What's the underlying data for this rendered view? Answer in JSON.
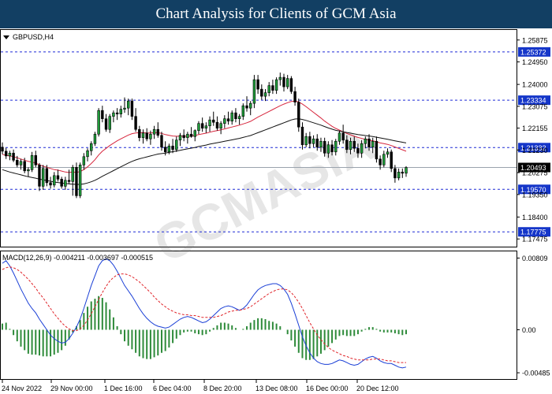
{
  "banner": {
    "title": "Chart Analysis for Clients of GCM Asia"
  },
  "watermark": "GCMASIA",
  "chart_data": {
    "type": "candlestick",
    "symbol": "GBPUSD,H4",
    "price_ticks": [
      "1.25875",
      "1.24950",
      "1.24000",
      "1.23075",
      "1.22155",
      "1.21230",
      "1.20275",
      "1.19350",
      "1.18400",
      "1.17475"
    ],
    "price_range": [
      1.1725,
      1.261
    ],
    "levels": [
      {
        "label": "1.25372",
        "value": 1.25372
      },
      {
        "label": "1.23334",
        "value": 1.23334
      },
      {
        "label": "1.21332",
        "value": 1.21332
      },
      {
        "label": "1.19570",
        "value": 1.1957
      },
      {
        "label": "1.17775",
        "value": 1.17775
      }
    ],
    "current_price": {
      "label": "1.20493",
      "value": 1.20493
    },
    "x_labels": [
      "24 Nov 2022",
      "29 Nov 00:00",
      "1 Dec 16:00",
      "6 Dec 04:00",
      "8 Dec 20:00",
      "13 Dec 08:00",
      "16 Dec 00:00",
      "20 Dec 12:00"
    ],
    "candles": [
      [
        1.2135,
        1.2155,
        1.2105,
        1.2118
      ],
      [
        1.2118,
        1.2132,
        1.2085,
        1.2098
      ],
      [
        1.2098,
        1.212,
        1.208,
        1.211
      ],
      [
        1.211,
        1.2125,
        1.2072,
        1.208
      ],
      [
        1.208,
        1.2098,
        1.205,
        1.206
      ],
      [
        1.206,
        1.2085,
        1.204,
        1.2075
      ],
      [
        1.2075,
        1.209,
        1.2025,
        1.2035
      ],
      [
        1.2035,
        1.205,
        1.201,
        1.204
      ],
      [
        1.204,
        1.2115,
        1.203,
        1.21
      ],
      [
        1.21,
        1.212,
        1.205,
        1.206
      ],
      [
        1.206,
        1.2068,
        1.195,
        1.197
      ],
      [
        1.197,
        1.206,
        1.1955,
        1.2045
      ],
      [
        1.2045,
        1.206,
        1.197,
        1.1985
      ],
      [
        1.1985,
        1.201,
        1.196,
        1.1975
      ],
      [
        1.1975,
        1.203,
        1.1965,
        1.2015
      ],
      [
        1.2015,
        1.204,
        1.199,
        1.2
      ],
      [
        1.2,
        1.201,
        1.196,
        1.197
      ],
      [
        1.197,
        1.201,
        1.1955,
        1.1995
      ],
      [
        1.1995,
        1.204,
        1.198,
        1.199
      ],
      [
        1.199,
        1.206,
        1.193,
        1.205
      ],
      [
        1.205,
        1.207,
        1.192,
        1.193
      ],
      [
        1.193,
        1.207,
        1.192,
        1.206
      ],
      [
        1.206,
        1.211,
        1.204,
        1.2095
      ],
      [
        1.2095,
        1.213,
        1.2075,
        1.212
      ],
      [
        1.212,
        1.216,
        1.21,
        1.215
      ],
      [
        1.215,
        1.22,
        1.214,
        1.219
      ],
      [
        1.219,
        1.23,
        1.218,
        1.229
      ],
      [
        1.229,
        1.231,
        1.224,
        1.2255
      ],
      [
        1.2255,
        1.2275,
        1.22,
        1.221
      ],
      [
        1.221,
        1.2275,
        1.2195,
        1.2265
      ],
      [
        1.2265,
        1.229,
        1.224,
        1.228
      ],
      [
        1.228,
        1.23,
        1.225,
        1.2275
      ],
      [
        1.2275,
        1.231,
        1.226,
        1.2295
      ],
      [
        1.2295,
        1.2345,
        1.228,
        1.23
      ],
      [
        1.23,
        1.234,
        1.227,
        1.233
      ],
      [
        1.233,
        1.234,
        1.225,
        1.2265
      ],
      [
        1.2265,
        1.23,
        1.22,
        1.221
      ],
      [
        1.221,
        1.2225,
        1.216,
        1.2175
      ],
      [
        1.2175,
        1.221,
        1.215,
        1.2195
      ],
      [
        1.2195,
        1.2215,
        1.216,
        1.217
      ],
      [
        1.217,
        1.2205,
        1.2145,
        1.219
      ],
      [
        1.219,
        1.2225,
        1.217,
        1.221
      ],
      [
        1.221,
        1.224,
        1.2175,
        1.2185
      ],
      [
        1.2185,
        1.22,
        1.212,
        1.2135
      ],
      [
        1.2135,
        1.216,
        1.21,
        1.2115
      ],
      [
        1.2115,
        1.215,
        1.2105,
        1.214
      ],
      [
        1.214,
        1.217,
        1.211,
        1.2125
      ],
      [
        1.2125,
        1.218,
        1.2115,
        1.2165
      ],
      [
        1.2165,
        1.2195,
        1.214,
        1.2185
      ],
      [
        1.2185,
        1.221,
        1.216,
        1.2175
      ],
      [
        1.2175,
        1.22,
        1.215,
        1.219
      ],
      [
        1.219,
        1.222,
        1.2175,
        1.218
      ],
      [
        1.218,
        1.221,
        1.216,
        1.2205
      ],
      [
        1.2205,
        1.2245,
        1.219,
        1.2235
      ],
      [
        1.2235,
        1.226,
        1.22,
        1.2215
      ],
      [
        1.2215,
        1.224,
        1.2195,
        1.2225
      ],
      [
        1.2225,
        1.2265,
        1.22,
        1.225
      ],
      [
        1.225,
        1.2285,
        1.2225,
        1.224
      ],
      [
        1.224,
        1.2265,
        1.2205,
        1.2215
      ],
      [
        1.2215,
        1.2245,
        1.219,
        1.2235
      ],
      [
        1.2235,
        1.227,
        1.2215,
        1.2255
      ],
      [
        1.2255,
        1.2285,
        1.223,
        1.2245
      ],
      [
        1.2245,
        1.229,
        1.223,
        1.228
      ],
      [
        1.228,
        1.23,
        1.224,
        1.2255
      ],
      [
        1.2255,
        1.2275,
        1.223,
        1.2265
      ],
      [
        1.2265,
        1.232,
        1.225,
        1.231
      ],
      [
        1.231,
        1.235,
        1.2285,
        1.23
      ],
      [
        1.23,
        1.233,
        1.227,
        1.232
      ],
      [
        1.232,
        1.244,
        1.23,
        1.242
      ],
      [
        1.242,
        1.244,
        1.236,
        1.238
      ],
      [
        1.238,
        1.24,
        1.2335,
        1.235
      ],
      [
        1.235,
        1.238,
        1.233,
        1.2365
      ],
      [
        1.2365,
        1.241,
        1.235,
        1.2395
      ],
      [
        1.2395,
        1.242,
        1.236,
        1.2375
      ],
      [
        1.2375,
        1.243,
        1.236,
        1.242
      ],
      [
        1.242,
        1.245,
        1.2395,
        1.243
      ],
      [
        1.243,
        1.2445,
        1.237,
        1.239
      ],
      [
        1.239,
        1.244,
        1.238,
        1.2425
      ],
      [
        1.2425,
        1.2435,
        1.236,
        1.237
      ],
      [
        1.237,
        1.239,
        1.231,
        1.2325
      ],
      [
        1.2325,
        1.234,
        1.22,
        1.222
      ],
      [
        1.222,
        1.224,
        1.2125,
        1.2145
      ],
      [
        1.2145,
        1.2195,
        1.2135,
        1.218
      ],
      [
        1.218,
        1.22,
        1.213,
        1.215
      ],
      [
        1.215,
        1.2185,
        1.2135,
        1.217
      ],
      [
        1.217,
        1.219,
        1.212,
        1.2135
      ],
      [
        1.2135,
        1.2175,
        1.2115,
        1.216
      ],
      [
        1.216,
        1.2175,
        1.2095,
        1.211
      ],
      [
        1.211,
        1.216,
        1.209,
        1.2145
      ],
      [
        1.2145,
        1.2165,
        1.21,
        1.2115
      ],
      [
        1.2115,
        1.217,
        1.21,
        1.216
      ],
      [
        1.216,
        1.2205,
        1.2145,
        1.2195
      ],
      [
        1.2195,
        1.223,
        1.215,
        1.2165
      ],
      [
        1.2165,
        1.2185,
        1.211,
        1.2125
      ],
      [
        1.2125,
        1.2175,
        1.2105,
        1.216
      ],
      [
        1.216,
        1.218,
        1.2115,
        1.213
      ],
      [
        1.213,
        1.215,
        1.209,
        1.211
      ],
      [
        1.211,
        1.2165,
        1.209,
        1.215
      ],
      [
        1.215,
        1.218,
        1.213,
        1.217
      ],
      [
        1.217,
        1.219,
        1.212,
        1.2135
      ],
      [
        1.2135,
        1.2175,
        1.211,
        1.216
      ],
      [
        1.216,
        1.218,
        1.207,
        1.2085
      ],
      [
        1.2085,
        1.21,
        1.204,
        1.206
      ],
      [
        1.206,
        1.212,
        1.205,
        1.2105
      ],
      [
        1.2105,
        1.213,
        1.209,
        1.2115
      ],
      [
        1.2115,
        1.2125,
        1.203,
        1.2045
      ],
      [
        1.2045,
        1.206,
        1.1985,
        1.2005
      ],
      [
        1.2005,
        1.2045,
        1.1995,
        1.203
      ],
      [
        1.203,
        1.2045,
        1.2005,
        1.2025
      ],
      [
        1.2025,
        1.2055,
        1.201,
        1.2049
      ]
    ],
    "ma_red": [
      1.2105,
      1.21,
      1.2098,
      1.2095,
      1.209,
      1.2085,
      1.208,
      1.2075,
      1.2072,
      1.2068,
      1.206,
      1.2055,
      1.205,
      1.2045,
      1.204,
      1.2038,
      1.2034,
      1.203,
      1.2028,
      1.203,
      1.2028,
      1.2032,
      1.204,
      1.2052,
      1.2066,
      1.2082,
      1.2102,
      1.2118,
      1.213,
      1.2142,
      1.2152,
      1.2162,
      1.217,
      1.2178,
      1.2186,
      1.2192,
      1.2195,
      1.2196,
      1.2196,
      1.2195,
      1.2195,
      1.2196,
      1.2196,
      1.2193,
      1.2188,
      1.2185,
      1.2182,
      1.2181,
      1.2181,
      1.2181,
      1.2181,
      1.2182,
      1.2184,
      1.2188,
      1.2191,
      1.2194,
      1.2198,
      1.2202,
      1.2205,
      1.2208,
      1.2212,
      1.2216,
      1.222,
      1.2224,
      1.2228,
      1.2233,
      1.2238,
      1.2244,
      1.2253,
      1.2262,
      1.227,
      1.2278,
      1.2286,
      1.2294,
      1.2302,
      1.231,
      1.2317,
      1.2323,
      1.2328,
      1.233,
      1.2326,
      1.2317,
      1.2306,
      1.2294,
      1.2282,
      1.227,
      1.2258,
      1.2245,
      1.2234,
      1.2223,
      1.2214,
      1.2207,
      1.22,
      1.2193,
      1.2187,
      1.2181,
      1.2176,
      1.2172,
      1.2168,
      1.2165,
      1.2162,
      1.2158,
      1.2153,
      1.215,
      1.2147,
      1.2142,
      1.2136,
      1.213,
      1.2124,
      1.2118
    ],
    "ma_black": [
      1.204,
      1.2035,
      1.203,
      1.2026,
      1.2022,
      1.2018,
      1.2014,
      1.201,
      1.2007,
      1.2004,
      1.2,
      1.1997,
      1.1994,
      1.1991,
      1.1988,
      1.1986,
      1.1984,
      1.1982,
      1.198,
      1.1979,
      1.1978,
      1.1978,
      1.198,
      1.1984,
      1.1989,
      1.1995,
      1.2003,
      1.2012,
      1.202,
      1.2028,
      1.2036,
      1.2044,
      1.2052,
      1.206,
      1.2068,
      1.2075,
      1.2081,
      1.2086,
      1.209,
      1.2094,
      1.2098,
      1.2102,
      1.2106,
      1.2108,
      1.211,
      1.2113,
      1.2116,
      1.2119,
      1.2122,
      1.2125,
      1.2128,
      1.2131,
      1.2134,
      1.2138,
      1.2141,
      1.2144,
      1.2148,
      1.2151,
      1.2154,
      1.2157,
      1.216,
      1.2163,
      1.2166,
      1.2169,
      1.2172,
      1.2176,
      1.218,
      1.2184,
      1.219,
      1.2196,
      1.2202,
      1.2208,
      1.2214,
      1.222,
      1.2226,
      1.2232,
      1.2238,
      1.2244,
      1.225,
      1.2254,
      1.2255,
      1.2252,
      1.2248,
      1.2243,
      1.2238,
      1.2233,
      1.2228,
      1.2222,
      1.2216,
      1.2211,
      1.2206,
      1.2203,
      1.22,
      1.2197,
      1.2194,
      1.2191,
      1.2188,
      1.2186,
      1.2184,
      1.2182,
      1.218,
      1.2177,
      1.2174,
      1.2171,
      1.2168,
      1.2165,
      1.2162,
      1.2159,
      1.2156,
      1.2153
    ],
    "ma_red_start": 0,
    "ma_black_start": 0,
    "macd": {
      "label": "MACD(12,26,9) -0.004211 -0.003697 -0.000515",
      "ticks": [
        "0.00809",
        "0.00",
        "-0.00485"
      ],
      "range": [
        -0.0052,
        0.0084
      ],
      "line": [
        0.0075,
        0.0078,
        0.0072,
        0.0064,
        0.0055,
        0.0046,
        0.0038,
        0.003,
        0.0024,
        0.0019,
        0.0012,
        0.0006,
        0.0,
        -0.0006,
        -0.001,
        -0.0013,
        -0.0015,
        -0.0014,
        -0.001,
        -0.0004,
        0.0003,
        0.0012,
        0.0024,
        0.0037,
        0.005,
        0.0061,
        0.0072,
        0.0078,
        0.008,
        0.0078,
        0.0073,
        0.0066,
        0.0058,
        0.005,
        0.0044,
        0.0038,
        0.0031,
        0.0024,
        0.0018,
        0.0013,
        0.0009,
        0.0006,
        0.0004,
        0.0003,
        0.0002,
        0.0003,
        0.0006,
        0.0009,
        0.0012,
        0.0014,
        0.0015,
        0.0014,
        0.0012,
        0.001,
        0.0008,
        0.0009,
        0.0012,
        0.0016,
        0.002,
        0.0024,
        0.0026,
        0.0027,
        0.0026,
        0.0024,
        0.0022,
        0.0024,
        0.0028,
        0.0034,
        0.004,
        0.0045,
        0.0048,
        0.005,
        0.0051,
        0.0052,
        0.0052,
        0.005,
        0.0046,
        0.004,
        0.003,
        0.0018,
        0.0005,
        -0.0008,
        -0.0018,
        -0.0026,
        -0.0032,
        -0.0036,
        -0.0038,
        -0.0039,
        -0.0039,
        -0.0038,
        -0.0036,
        -0.0034,
        -0.0035,
        -0.0037,
        -0.0039,
        -0.004,
        -0.0039,
        -0.0036,
        -0.0033,
        -0.0031,
        -0.003,
        -0.0032,
        -0.0035,
        -0.0037,
        -0.0038,
        -0.0038,
        -0.004,
        -0.0042,
        -0.0043,
        -0.0042
      ],
      "signal": [
        0.0068,
        0.007,
        0.0071,
        0.007,
        0.0068,
        0.0065,
        0.0061,
        0.0057,
        0.0052,
        0.0047,
        0.0041,
        0.0036,
        0.003,
        0.0024,
        0.0018,
        0.0013,
        0.0008,
        0.0004,
        0.0001,
        -0.0001,
        -0.0001,
        0.0001,
        0.0005,
        0.0011,
        0.0018,
        0.0026,
        0.0034,
        0.0042,
        0.0049,
        0.0055,
        0.0059,
        0.0062,
        0.0063,
        0.0063,
        0.0062,
        0.006,
        0.0057,
        0.0054,
        0.005,
        0.0046,
        0.0042,
        0.0037,
        0.0033,
        0.0029,
        0.0026,
        0.0023,
        0.0021,
        0.0019,
        0.0018,
        0.0017,
        0.0017,
        0.0016,
        0.0016,
        0.0015,
        0.0014,
        0.0014,
        0.0014,
        0.0014,
        0.0015,
        0.0016,
        0.0018,
        0.002,
        0.0021,
        0.0022,
        0.0022,
        0.0023,
        0.0024,
        0.0026,
        0.0029,
        0.0032,
        0.0035,
        0.0038,
        0.0041,
        0.0043,
        0.0045,
        0.0046,
        0.0046,
        0.0045,
        0.0042,
        0.0037,
        0.0031,
        0.0024,
        0.0016,
        0.0008,
        0.0001,
        -0.0006,
        -0.0011,
        -0.0016,
        -0.002,
        -0.0023,
        -0.0025,
        -0.0027,
        -0.0029,
        -0.003,
        -0.0032,
        -0.0033,
        -0.0034,
        -0.0034,
        -0.0034,
        -0.0034,
        -0.0033,
        -0.0033,
        -0.0033,
        -0.0034,
        -0.0035,
        -0.0035,
        -0.0036,
        -0.0037,
        -0.0037,
        -0.0037
      ]
    }
  }
}
